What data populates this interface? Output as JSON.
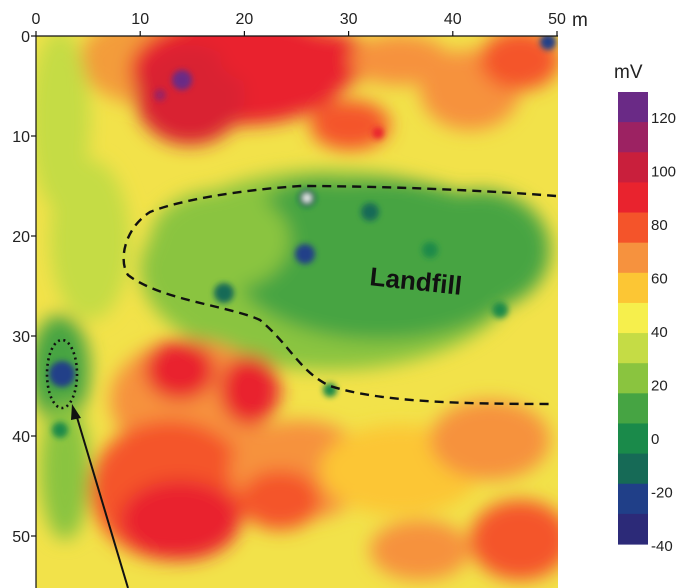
{
  "chart_data": {
    "type": "heatmap",
    "x_ticks": [
      "0",
      "10",
      "20",
      "30",
      "40",
      "50"
    ],
    "x_unit": "m",
    "y_ticks": [
      "0",
      "10",
      "20",
      "30",
      "40",
      "50"
    ],
    "colorbar": {
      "unit": "mV",
      "tick_labels": [
        "120",
        "100",
        "80",
        "60",
        "40",
        "20",
        "0",
        "-20",
        "-40"
      ],
      "colors": [
        "#6a2a86",
        "#9c2262",
        "#c91f3c",
        "#e9232e",
        "#f4542a",
        "#f6923e",
        "#fcc634",
        "#f6ef4c",
        "#c5dc45",
        "#8ac43f",
        "#46a443",
        "#1a8a4a",
        "#166a56",
        "#203f88",
        "#2c2a78"
      ]
    },
    "annotations": {
      "landfill_label": "Landfill"
    }
  }
}
